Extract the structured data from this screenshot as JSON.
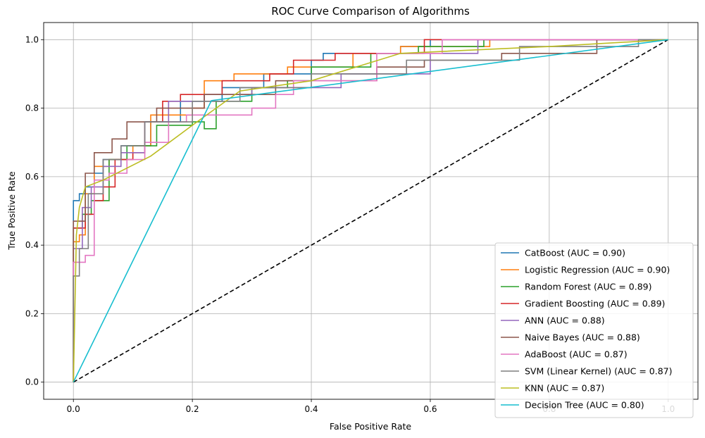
{
  "chart_data": {
    "type": "line",
    "title": "ROC Curve Comparison of Algorithms",
    "xlabel": "False Positive Rate",
    "ylabel": "True Positive Rate",
    "xlim": [
      -0.05,
      1.05
    ],
    "ylim": [
      -0.05,
      1.05
    ],
    "xticks": [
      "0.0",
      "0.2",
      "0.4",
      "0.6",
      "0.8",
      "1.0"
    ],
    "yticks": [
      "0.0",
      "0.2",
      "0.4",
      "0.6",
      "0.8",
      "1.0"
    ],
    "grid": true,
    "legend_position": "lower-right",
    "reference_line": {
      "x": [
        0,
        1
      ],
      "y": [
        0,
        1
      ],
      "style": "dashed",
      "color": "#000000"
    },
    "series": [
      {
        "name": "CatBoost (AUC = 0.90)",
        "color": "#1f77b4",
        "step": true,
        "x": [
          0,
          0,
          0.01,
          0.01,
          0.02,
          0.02,
          0.035,
          0.035,
          0.05,
          0.05,
          0.08,
          0.08,
          0.13,
          0.13,
          0.18,
          0.18,
          0.25,
          0.25,
          0.32,
          0.32,
          0.4,
          0.4,
          0.42,
          0.42,
          0.55,
          0.55,
          0.6,
          0.6,
          1.0
        ],
        "y": [
          0,
          0.53,
          0.53,
          0.55,
          0.55,
          0.57,
          0.57,
          0.61,
          0.61,
          0.65,
          0.65,
          0.69,
          0.69,
          0.76,
          0.76,
          0.82,
          0.82,
          0.86,
          0.86,
          0.9,
          0.9,
          0.94,
          0.94,
          0.96,
          0.96,
          0.98,
          0.98,
          1.0,
          1.0
        ]
      },
      {
        "name": "Logistic Regression (AUC = 0.90)",
        "color": "#ff7f0e",
        "step": true,
        "x": [
          0,
          0,
          0.01,
          0.01,
          0.02,
          0.02,
          0.035,
          0.035,
          0.06,
          0.06,
          0.1,
          0.1,
          0.13,
          0.13,
          0.2,
          0.2,
          0.22,
          0.22,
          0.27,
          0.27,
          0.36,
          0.36,
          0.47,
          0.47,
          0.55,
          0.55,
          0.7,
          0.7,
          1.0
        ],
        "y": [
          0,
          0.41,
          0.41,
          0.43,
          0.43,
          0.55,
          0.55,
          0.63,
          0.63,
          0.65,
          0.65,
          0.69,
          0.69,
          0.78,
          0.78,
          0.8,
          0.8,
          0.88,
          0.88,
          0.9,
          0.9,
          0.92,
          0.92,
          0.96,
          0.96,
          0.98,
          0.98,
          1.0,
          1.0
        ]
      },
      {
        "name": "Random Forest (AUC = 0.89)",
        "color": "#2ca02c",
        "step": true,
        "x": [
          0,
          0,
          0.015,
          0.015,
          0.03,
          0.03,
          0.06,
          0.06,
          0.09,
          0.09,
          0.14,
          0.14,
          0.2,
          0.2,
          0.22,
          0.22,
          0.24,
          0.24,
          0.3,
          0.3,
          0.36,
          0.36,
          0.4,
          0.4,
          0.5,
          0.5,
          0.58,
          0.58,
          0.69,
          0.69,
          1.0
        ],
        "y": [
          0,
          0.45,
          0.45,
          0.49,
          0.49,
          0.53,
          0.53,
          0.65,
          0.65,
          0.69,
          0.69,
          0.75,
          0.75,
          0.76,
          0.76,
          0.74,
          0.74,
          0.82,
          0.82,
          0.86,
          0.86,
          0.88,
          0.88,
          0.92,
          0.92,
          0.96,
          0.96,
          0.98,
          0.98,
          1.0,
          1.0
        ]
      },
      {
        "name": "Gradient Boosting (AUC = 0.89)",
        "color": "#d62728",
        "step": true,
        "x": [
          0,
          0,
          0.02,
          0.02,
          0.035,
          0.035,
          0.05,
          0.05,
          0.07,
          0.07,
          0.1,
          0.1,
          0.12,
          0.12,
          0.15,
          0.15,
          0.18,
          0.18,
          0.25,
          0.25,
          0.33,
          0.33,
          0.37,
          0.37,
          0.44,
          0.44,
          0.59,
          0.59,
          1.0
        ],
        "y": [
          0,
          0.45,
          0.45,
          0.49,
          0.49,
          0.53,
          0.53,
          0.57,
          0.57,
          0.65,
          0.65,
          0.67,
          0.67,
          0.76,
          0.76,
          0.82,
          0.82,
          0.84,
          0.84,
          0.88,
          0.88,
          0.9,
          0.9,
          0.94,
          0.94,
          0.96,
          0.96,
          1.0,
          1.0
        ]
      },
      {
        "name": "ANN (AUC = 0.88)",
        "color": "#9467bd",
        "step": true,
        "x": [
          0,
          0,
          0.015,
          0.015,
          0.03,
          0.03,
          0.05,
          0.05,
          0.08,
          0.08,
          0.12,
          0.12,
          0.16,
          0.16,
          0.22,
          0.22,
          0.3,
          0.3,
          0.45,
          0.45,
          0.6,
          0.6,
          0.68,
          0.68,
          1.0
        ],
        "y": [
          0,
          0.39,
          0.39,
          0.51,
          0.51,
          0.57,
          0.57,
          0.63,
          0.63,
          0.67,
          0.67,
          0.76,
          0.76,
          0.82,
          0.82,
          0.84,
          0.84,
          0.86,
          0.86,
          0.9,
          0.9,
          0.96,
          0.96,
          1.0,
          1.0
        ]
      },
      {
        "name": "Naive Bayes (AUC = 0.88)",
        "color": "#8c564b",
        "step": true,
        "x": [
          0,
          0,
          0.02,
          0.02,
          0.035,
          0.035,
          0.065,
          0.065,
          0.09,
          0.09,
          0.14,
          0.14,
          0.22,
          0.22,
          0.34,
          0.34,
          0.51,
          0.51,
          0.59,
          0.59,
          0.72,
          0.72,
          0.88,
          0.88,
          1.0
        ],
        "y": [
          0,
          0.47,
          0.47,
          0.61,
          0.61,
          0.67,
          0.67,
          0.71,
          0.71,
          0.76,
          0.76,
          0.8,
          0.8,
          0.84,
          0.84,
          0.88,
          0.88,
          0.92,
          0.92,
          0.94,
          0.94,
          0.96,
          0.96,
          1.0,
          1.0
        ]
      },
      {
        "name": "AdaBoost (AUC = 0.87)",
        "color": "#e377c2",
        "step": true,
        "x": [
          0,
          0,
          0.02,
          0.02,
          0.035,
          0.035,
          0.06,
          0.06,
          0.09,
          0.09,
          0.12,
          0.12,
          0.16,
          0.16,
          0.19,
          0.19,
          0.3,
          0.3,
          0.34,
          0.34,
          0.37,
          0.37,
          0.51,
          0.51,
          0.62,
          0.62,
          1.0
        ],
        "y": [
          0,
          0.35,
          0.35,
          0.37,
          0.37,
          0.59,
          0.59,
          0.61,
          0.61,
          0.65,
          0.65,
          0.7,
          0.7,
          0.76,
          0.76,
          0.78,
          0.78,
          0.8,
          0.8,
          0.84,
          0.84,
          0.88,
          0.88,
          0.96,
          0.96,
          1.0,
          1.0
        ]
      },
      {
        "name": "SVM (Linear Kernel) (AUC = 0.87)",
        "color": "#7f7f7f",
        "step": true,
        "x": [
          0,
          0,
          0.01,
          0.01,
          0.025,
          0.025,
          0.05,
          0.05,
          0.08,
          0.08,
          0.12,
          0.12,
          0.2,
          0.2,
          0.28,
          0.28,
          0.4,
          0.4,
          0.56,
          0.56,
          0.75,
          0.75,
          0.95,
          0.95,
          1.0
        ],
        "y": [
          0,
          0.31,
          0.31,
          0.39,
          0.39,
          0.55,
          0.55,
          0.65,
          0.65,
          0.69,
          0.69,
          0.76,
          0.76,
          0.82,
          0.82,
          0.86,
          0.86,
          0.9,
          0.9,
          0.94,
          0.94,
          0.98,
          0.98,
          1.0,
          1.0
        ]
      },
      {
        "name": "KNN (AUC = 0.87)",
        "color": "#bcbd22",
        "step": false,
        "x": [
          0,
          0.005,
          0.01,
          0.02,
          0.05,
          0.13,
          0.2,
          0.28,
          0.4,
          0.55,
          0.8,
          1.0
        ],
        "y": [
          0,
          0.43,
          0.51,
          0.57,
          0.59,
          0.66,
          0.75,
          0.85,
          0.88,
          0.96,
          0.98,
          1.0
        ]
      },
      {
        "name": "Decision Tree (AUC = 0.80)",
        "color": "#17becf",
        "step": false,
        "x": [
          0,
          0.232,
          1.0
        ],
        "y": [
          0,
          0.822,
          1.0
        ]
      }
    ]
  }
}
